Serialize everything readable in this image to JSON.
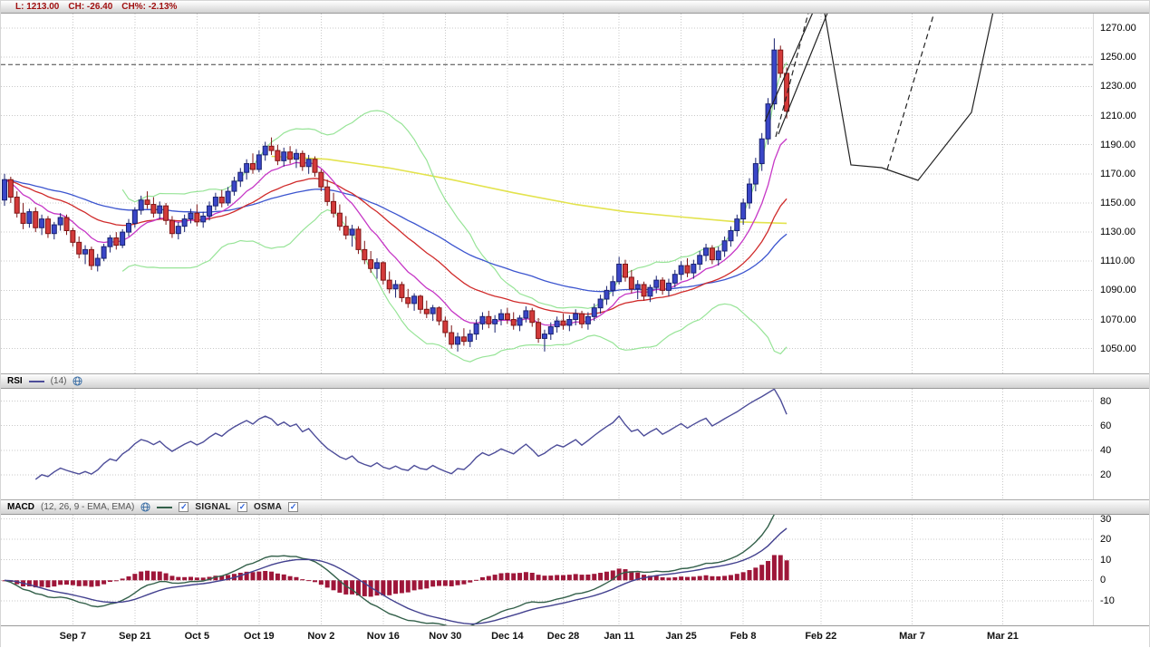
{
  "quote": {
    "l": "L: 1213.00",
    "ch": "CH: -26.40",
    "chp": "CH%: -2.13%"
  },
  "rsi_header": {
    "title": "RSI",
    "params": "(14)"
  },
  "macd_header": {
    "title": "MACD",
    "params": "(12, 26, 9 - EMA, EMA)",
    "signal": "SIGNAL",
    "osma": "OSMA"
  },
  "ui": {
    "checkbox_glyph": "✓",
    "icons": {
      "globe": "globe-icon"
    }
  },
  "chart_data": {
    "type": "candlestick-with-indicators",
    "x_labels": [
      {
        "label": "Sep 7",
        "xi": 11
      },
      {
        "label": "Sep 21",
        "xi": 21
      },
      {
        "label": "Oct 5",
        "xi": 31
      },
      {
        "label": "Oct 19",
        "xi": 41
      },
      {
        "label": "Nov 2",
        "xi": 51
      },
      {
        "label": "Nov 16",
        "xi": 61
      },
      {
        "label": "Nov 30",
        "xi": 71
      },
      {
        "label": "Dec 14",
        "xi": 81
      },
      {
        "label": "Dec 28",
        "xi": 90
      },
      {
        "label": "Jan 11",
        "xi": 99
      },
      {
        "label": "Jan 25",
        "xi": 109
      },
      {
        "label": "Feb 8",
        "xi": 119
      },
      {
        "label": "Feb 22",
        "xi": 131.5
      },
      {
        "label": "Mar 7",
        "xi": 146.2
      },
      {
        "label": "Mar 21",
        "xi": 160.8
      }
    ],
    "main": {
      "ymax": 1280,
      "ymin": 1033,
      "y_ticks": [
        1270,
        1250,
        1230,
        1210,
        1190,
        1170,
        1150,
        1130,
        1110,
        1090,
        1070,
        1050
      ],
      "dashed_level": 1245,
      "up_color": "#3a46c8",
      "up_border": "#1a2370",
      "down_color": "#d33a3a",
      "down_border": "#7e1515",
      "bollinger": {
        "period": 20,
        "dev": 2,
        "color": "#97e497"
      },
      "mas": [
        {
          "name": "slow-ma-blue",
          "period": 50,
          "color": "#3c55cf"
        },
        {
          "name": "medium-ma-red",
          "period": 25,
          "color": "#d02b2b"
        },
        {
          "name": "fast-ma-magenta",
          "period": 10,
          "color": "#c637c6"
        }
      ],
      "slow_ma": {
        "name": "long-term-ma-yellow",
        "color": "#e3e34e",
        "points": [
          [
            43,
            1182
          ],
          [
            52,
            1180
          ],
          [
            62,
            1174
          ],
          [
            72,
            1166
          ],
          [
            82,
            1157
          ],
          [
            92,
            1149
          ],
          [
            100,
            1144
          ],
          [
            110,
            1140
          ],
          [
            118,
            1137
          ],
          [
            126,
            1136
          ]
        ]
      },
      "trendlines": [
        {
          "dash": false,
          "points": [
            [
              843,
              119
            ],
            [
              913,
              -40
            ]
          ]
        },
        {
          "dash": false,
          "points": [
            [
              858,
              133
            ],
            [
              928,
              -40
            ]
          ]
        },
        {
          "dash": false,
          "points": [
            [
              903,
              -35
            ],
            [
              938,
              167
            ],
            [
              972,
              170
            ],
            [
              1012,
              184
            ],
            [
              1071,
              109
            ],
            [
              1102,
              -35
            ]
          ]
        },
        {
          "dash": true,
          "points": [
            [
              855,
              136
            ],
            [
              900,
              -35
            ]
          ]
        },
        {
          "dash": true,
          "points": [
            [
              978,
              172
            ],
            [
              1040,
              -35
            ]
          ]
        }
      ],
      "candles": [
        [
          1152,
          1170,
          1148,
          1166
        ],
        [
          1166,
          1168,
          1150,
          1154
        ],
        [
          1154,
          1158,
          1140,
          1143
        ],
        [
          1143,
          1150,
          1132,
          1136
        ],
        [
          1136,
          1146,
          1133,
          1144
        ],
        [
          1144,
          1147,
          1130,
          1133
        ],
        [
          1133,
          1142,
          1128,
          1139
        ],
        [
          1139,
          1141,
          1126,
          1129
        ],
        [
          1129,
          1137,
          1125,
          1135
        ],
        [
          1135,
          1143,
          1131,
          1140
        ],
        [
          1140,
          1142,
          1128,
          1131
        ],
        [
          1131,
          1133,
          1120,
          1123
        ],
        [
          1123,
          1127,
          1112,
          1115
        ],
        [
          1115,
          1121,
          1108,
          1118
        ],
        [
          1118,
          1120,
          1104,
          1107
        ],
        [
          1107,
          1115,
          1103,
          1112
        ],
        [
          1112,
          1122,
          1110,
          1120
        ],
        [
          1120,
          1128,
          1116,
          1126
        ],
        [
          1126,
          1130,
          1118,
          1121
        ],
        [
          1121,
          1132,
          1119,
          1130
        ],
        [
          1130,
          1139,
          1127,
          1136
        ],
        [
          1136,
          1147,
          1133,
          1145
        ],
        [
          1145,
          1155,
          1142,
          1152
        ],
        [
          1152,
          1158,
          1146,
          1149
        ],
        [
          1149,
          1154,
          1140,
          1143
        ],
        [
          1143,
          1151,
          1139,
          1148
        ],
        [
          1148,
          1150,
          1135,
          1138
        ],
        [
          1138,
          1141,
          1126,
          1129
        ],
        [
          1129,
          1137,
          1125,
          1134
        ],
        [
          1134,
          1142,
          1130,
          1139
        ],
        [
          1139,
          1146,
          1136,
          1143
        ],
        [
          1143,
          1149,
          1134,
          1137
        ],
        [
          1137,
          1144,
          1133,
          1141
        ],
        [
          1141,
          1151,
          1138,
          1148
        ],
        [
          1148,
          1157,
          1145,
          1154
        ],
        [
          1154,
          1159,
          1147,
          1150
        ],
        [
          1150,
          1161,
          1148,
          1158
        ],
        [
          1158,
          1168,
          1155,
          1165
        ],
        [
          1165,
          1174,
          1161,
          1171
        ],
        [
          1171,
          1180,
          1166,
          1177
        ],
        [
          1177,
          1184,
          1170,
          1173
        ],
        [
          1173,
          1186,
          1171,
          1183
        ],
        [
          1183,
          1192,
          1179,
          1189
        ],
        [
          1189,
          1195,
          1183,
          1186
        ],
        [
          1186,
          1190,
          1176,
          1179
        ],
        [
          1179,
          1188,
          1175,
          1185
        ],
        [
          1185,
          1189,
          1177,
          1180
        ],
        [
          1180,
          1187,
          1174,
          1184
        ],
        [
          1184,
          1186,
          1172,
          1175
        ],
        [
          1175,
          1183,
          1170,
          1180
        ],
        [
          1180,
          1182,
          1168,
          1171
        ],
        [
          1171,
          1173,
          1158,
          1161
        ],
        [
          1161,
          1166,
          1148,
          1151
        ],
        [
          1151,
          1157,
          1140,
          1143
        ],
        [
          1143,
          1149,
          1131,
          1134
        ],
        [
          1134,
          1141,
          1125,
          1128
        ],
        [
          1128,
          1135,
          1120,
          1132
        ],
        [
          1132,
          1134,
          1115,
          1118
        ],
        [
          1118,
          1124,
          1108,
          1111
        ],
        [
          1111,
          1117,
          1102,
          1105
        ],
        [
          1105,
          1112,
          1098,
          1109
        ],
        [
          1109,
          1110,
          1094,
          1097
        ],
        [
          1097,
          1103,
          1088,
          1091
        ],
        [
          1091,
          1097,
          1085,
          1094
        ],
        [
          1094,
          1096,
          1082,
          1085
        ],
        [
          1085,
          1091,
          1078,
          1081
        ],
        [
          1081,
          1088,
          1076,
          1086
        ],
        [
          1086,
          1087,
          1074,
          1077
        ],
        [
          1077,
          1083,
          1071,
          1074
        ],
        [
          1074,
          1080,
          1069,
          1078
        ],
        [
          1078,
          1079,
          1066,
          1069
        ],
        [
          1069,
          1072,
          1058,
          1061
        ],
        [
          1061,
          1066,
          1050,
          1053
        ],
        [
          1053,
          1061,
          1048,
          1058
        ],
        [
          1058,
          1064,
          1052,
          1055
        ],
        [
          1055,
          1063,
          1051,
          1060
        ],
        [
          1060,
          1070,
          1056,
          1067
        ],
        [
          1067,
          1075,
          1063,
          1072
        ],
        [
          1072,
          1076,
          1064,
          1067
        ],
        [
          1067,
          1073,
          1061,
          1070
        ],
        [
          1070,
          1077,
          1066,
          1074
        ],
        [
          1074,
          1078,
          1067,
          1070
        ],
        [
          1070,
          1075,
          1063,
          1066
        ],
        [
          1066,
          1073,
          1062,
          1071
        ],
        [
          1071,
          1079,
          1068,
          1076
        ],
        [
          1076,
          1078,
          1065,
          1068
        ],
        [
          1068,
          1071,
          1054,
          1057
        ],
        [
          1057,
          1063,
          1048,
          1060
        ],
        [
          1060,
          1068,
          1056,
          1065
        ],
        [
          1065,
          1072,
          1061,
          1069
        ],
        [
          1069,
          1074,
          1063,
          1066
        ],
        [
          1066,
          1073,
          1062,
          1070
        ],
        [
          1070,
          1077,
          1066,
          1074
        ],
        [
          1074,
          1076,
          1064,
          1067
        ],
        [
          1067,
          1075,
          1063,
          1072
        ],
        [
          1072,
          1081,
          1069,
          1078
        ],
        [
          1078,
          1087,
          1074,
          1084
        ],
        [
          1084,
          1093,
          1080,
          1090
        ],
        [
          1090,
          1100,
          1086,
          1096
        ],
        [
          1096,
          1113,
          1094,
          1108
        ],
        [
          1108,
          1111,
          1096,
          1099
        ],
        [
          1099,
          1104,
          1088,
          1091
        ],
        [
          1091,
          1097,
          1084,
          1094
        ],
        [
          1094,
          1096,
          1083,
          1086
        ],
        [
          1086,
          1094,
          1082,
          1092
        ],
        [
          1092,
          1100,
          1088,
          1097
        ],
        [
          1097,
          1099,
          1087,
          1090
        ],
        [
          1090,
          1098,
          1086,
          1095
        ],
        [
          1095,
          1104,
          1092,
          1101
        ],
        [
          1101,
          1110,
          1097,
          1107
        ],
        [
          1107,
          1112,
          1099,
          1102
        ],
        [
          1102,
          1111,
          1098,
          1108
        ],
        [
          1108,
          1117,
          1104,
          1114
        ],
        [
          1114,
          1122,
          1110,
          1119
        ],
        [
          1119,
          1121,
          1108,
          1111
        ],
        [
          1111,
          1120,
          1107,
          1117
        ],
        [
          1117,
          1127,
          1113,
          1124
        ],
        [
          1124,
          1134,
          1120,
          1131
        ],
        [
          1131,
          1142,
          1127,
          1139
        ],
        [
          1139,
          1153,
          1135,
          1150
        ],
        [
          1150,
          1167,
          1146,
          1163
        ],
        [
          1163,
          1181,
          1158,
          1177
        ],
        [
          1177,
          1198,
          1172,
          1194
        ],
        [
          1194,
          1222,
          1190,
          1218
        ],
        [
          1218,
          1263,
          1214,
          1255
        ],
        [
          1255,
          1258,
          1236,
          1239
        ],
        [
          1239,
          1243,
          1208,
          1213
        ]
      ]
    },
    "rsi": {
      "period": 14,
      "ymax": 90,
      "ymin": 0,
      "y_ticks": [
        80,
        60,
        40,
        20
      ],
      "color": "#4d4d99"
    },
    "macd": {
      "fast": 12,
      "slow": 26,
      "signal": 9,
      "ymax": 32,
      "ymin": -22,
      "y_ticks": [
        30,
        20,
        10,
        0,
        -10
      ],
      "color": "#33604a",
      "signal_color": "#43418f",
      "osma_color": "#9e1639"
    }
  }
}
